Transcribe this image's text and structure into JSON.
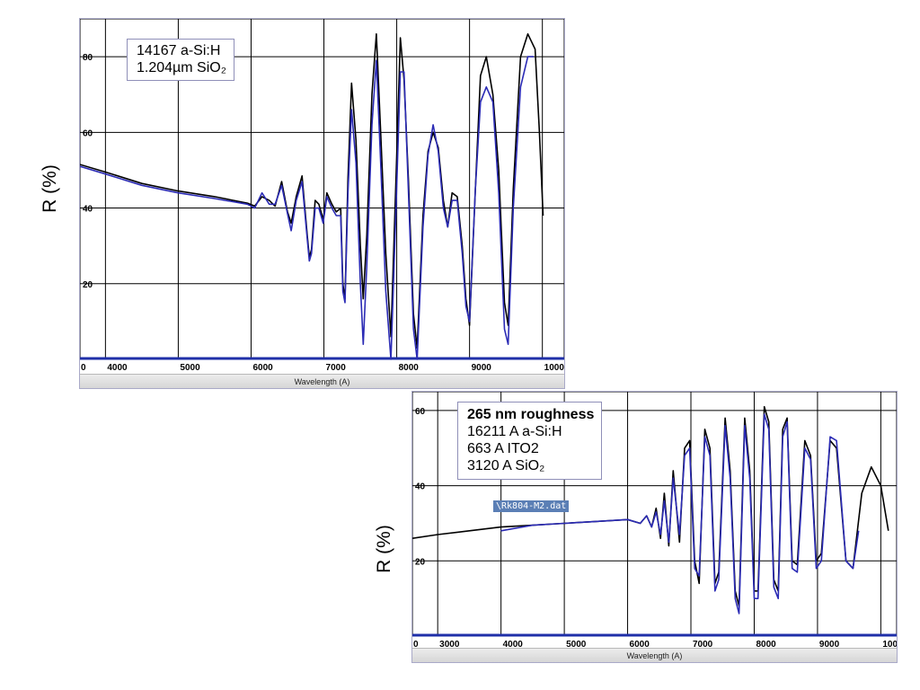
{
  "charts": [
    {
      "id": "top",
      "legend": [
        "14167 a-Si:H",
        "1.204µm  SiO₂"
      ],
      "ylabel": "R (%)",
      "xlabel": "Wavelength (A)"
    },
    {
      "id": "bottom",
      "legend_title": "265 nm roughness",
      "legend": [
        "16211 A   a-Si:H",
        "663 A ITO2",
        "3120 A  SiO₂"
      ],
      "ylabel": "R (%)",
      "xlabel": "Wavelength (A)",
      "file_tag": "\\Rk804-M2.dat"
    }
  ],
  "chart_data": [
    {
      "type": "line",
      "title": "",
      "xlabel": "Wavelength (A)",
      "ylabel": "R (%)",
      "xlim": [
        3650,
        10300
      ],
      "ylim": [
        0,
        90
      ],
      "x_ticks": [
        "0",
        "4000",
        "5000",
        "6000",
        "7000",
        "8000",
        "9000",
        "1000"
      ],
      "y_ticks": [
        "20",
        "40",
        "60",
        "80"
      ],
      "grid": true,
      "series": [
        {
          "color": "#000000",
          "points": [
            [
              3650,
              51.5
            ],
            [
              4000,
              49.5
            ],
            [
              4500,
              46.5
            ],
            [
              5000,
              44.5
            ],
            [
              5500,
              43
            ],
            [
              5950,
              41.3
            ],
            [
              6050,
              40.5
            ],
            [
              6150,
              43
            ],
            [
              6250,
              42
            ],
            [
              6330,
              40.5
            ],
            [
              6420,
              47
            ],
            [
              6500,
              39
            ],
            [
              6550,
              36
            ],
            [
              6620,
              43
            ],
            [
              6700,
              48.5
            ],
            [
              6770,
              33
            ],
            [
              6800,
              27
            ],
            [
              6830,
              29
            ],
            [
              6880,
              42
            ],
            [
              6930,
              41
            ],
            [
              6990,
              37
            ],
            [
              7040,
              44
            ],
            [
              7110,
              41
            ],
            [
              7170,
              39
            ],
            [
              7230,
              40
            ],
            [
              7260,
              20
            ],
            [
              7290,
              16
            ],
            [
              7330,
              48
            ],
            [
              7380,
              73
            ],
            [
              7440,
              58
            ],
            [
              7500,
              30
            ],
            [
              7540,
              16
            ],
            [
              7590,
              33
            ],
            [
              7660,
              70
            ],
            [
              7720,
              86
            ],
            [
              7780,
              60
            ],
            [
              7850,
              28
            ],
            [
              7920,
              6
            ],
            [
              7990,
              48
            ],
            [
              8050,
              85
            ],
            [
              8100,
              74
            ],
            [
              8160,
              48
            ],
            [
              8230,
              12
            ],
            [
              8280,
              3
            ],
            [
              8360,
              38
            ],
            [
              8430,
              55
            ],
            [
              8500,
              60
            ],
            [
              8570,
              56
            ],
            [
              8640,
              42
            ],
            [
              8700,
              35
            ],
            [
              8760,
              44
            ],
            [
              8830,
              43
            ],
            [
              8900,
              30
            ],
            [
              8950,
              16
            ],
            [
              9000,
              9
            ],
            [
              9080,
              45
            ],
            [
              9150,
              75
            ],
            [
              9230,
              80
            ],
            [
              9320,
              70
            ],
            [
              9400,
              50
            ],
            [
              9480,
              15
            ],
            [
              9530,
              9
            ],
            [
              9600,
              45
            ],
            [
              9700,
              80
            ],
            [
              9800,
              86
            ],
            [
              9900,
              82
            ],
            [
              9960,
              60
            ],
            [
              10010,
              38
            ]
          ]
        },
        {
          "color": "#2b2bb5",
          "points": [
            [
              3650,
              51
            ],
            [
              4000,
              49
            ],
            [
              4500,
              46
            ],
            [
              5000,
              44
            ],
            [
              5500,
              42.5
            ],
            [
              5950,
              41
            ],
            [
              6050,
              40
            ],
            [
              6150,
              44
            ],
            [
              6250,
              41
            ],
            [
              6330,
              41
            ],
            [
              6420,
              46
            ],
            [
              6500,
              38.5
            ],
            [
              6550,
              34
            ],
            [
              6620,
              42
            ],
            [
              6700,
              47
            ],
            [
              6770,
              32
            ],
            [
              6800,
              26
            ],
            [
              6830,
              28
            ],
            [
              6880,
              40
            ],
            [
              6930,
              40
            ],
            [
              6990,
              36
            ],
            [
              7040,
              43
            ],
            [
              7110,
              40
            ],
            [
              7170,
              38
            ],
            [
              7230,
              38
            ],
            [
              7260,
              18
            ],
            [
              7290,
              15
            ],
            [
              7330,
              44
            ],
            [
              7380,
              66
            ],
            [
              7440,
              52
            ],
            [
              7500,
              20
            ],
            [
              7540,
              4
            ],
            [
              7590,
              25
            ],
            [
              7660,
              62
            ],
            [
              7720,
              79
            ],
            [
              7780,
              52
            ],
            [
              7850,
              18
            ],
            [
              7920,
              0
            ],
            [
              7990,
              40
            ],
            [
              8050,
              76
            ],
            [
              8100,
              76
            ],
            [
              8160,
              45
            ],
            [
              8230,
              8
            ],
            [
              8280,
              0
            ],
            [
              8360,
              35
            ],
            [
              8430,
              54
            ],
            [
              8500,
              62
            ],
            [
              8570,
              55
            ],
            [
              8640,
              40
            ],
            [
              8700,
              35
            ],
            [
              8760,
              42
            ],
            [
              8830,
              42
            ],
            [
              8900,
              28
            ],
            [
              8950,
              14
            ],
            [
              9000,
              10
            ],
            [
              9080,
              45
            ],
            [
              9150,
              68
            ],
            [
              9230,
              72
            ],
            [
              9320,
              68
            ],
            [
              9400,
              44
            ],
            [
              9480,
              8
            ],
            [
              9530,
              4
            ],
            [
              9600,
              40
            ],
            [
              9700,
              72
            ],
            [
              9800,
              80
            ],
            [
              9880,
              80
            ]
          ]
        }
      ]
    },
    {
      "type": "line",
      "title": "",
      "xlabel": "Wavelength (A)",
      "ylabel": "R (%)",
      "xlim": [
        2600,
        10250
      ],
      "ylim": [
        0,
        65
      ],
      "x_ticks": [
        "0",
        "3000",
        "4000",
        "5000",
        "6000",
        "7000",
        "8000",
        "9000",
        "1000"
      ],
      "y_ticks": [
        "20",
        "40",
        "60"
      ],
      "grid": true,
      "series": [
        {
          "color": "#000000",
          "points": [
            [
              2600,
              26
            ],
            [
              3000,
              27
            ],
            [
              3500,
              28
            ],
            [
              4000,
              29
            ],
            [
              4500,
              29.5
            ],
            [
              5000,
              30
            ],
            [
              5500,
              30.5
            ],
            [
              6000,
              31
            ],
            [
              6200,
              30
            ],
            [
              6300,
              32
            ],
            [
              6380,
              29
            ],
            [
              6450,
              34
            ],
            [
              6520,
              26
            ],
            [
              6580,
              38
            ],
            [
              6650,
              24
            ],
            [
              6720,
              44
            ],
            [
              6820,
              25
            ],
            [
              6900,
              50
            ],
            [
              6980,
              52
            ],
            [
              7060,
              20
            ],
            [
              7130,
              14
            ],
            [
              7220,
              55
            ],
            [
              7300,
              50
            ],
            [
              7380,
              14
            ],
            [
              7440,
              17
            ],
            [
              7540,
              58
            ],
            [
              7620,
              44
            ],
            [
              7700,
              12
            ],
            [
              7760,
              8
            ],
            [
              7850,
              58
            ],
            [
              7930,
              44
            ],
            [
              8000,
              12
            ],
            [
              8060,
              12
            ],
            [
              8160,
              61
            ],
            [
              8230,
              57
            ],
            [
              8310,
              15
            ],
            [
              8380,
              12
            ],
            [
              8450,
              55
            ],
            [
              8520,
              58
            ],
            [
              8600,
              20
            ],
            [
              8680,
              19
            ],
            [
              8800,
              52
            ],
            [
              8890,
              48
            ],
            [
              8980,
              20
            ],
            [
              9060,
              22
            ],
            [
              9200,
              52
            ],
            [
              9300,
              50
            ],
            [
              9450,
              20
            ],
            [
              9560,
              18
            ],
            [
              9700,
              38
            ],
            [
              9850,
              45
            ],
            [
              10000,
              40
            ],
            [
              10120,
              28
            ]
          ]
        },
        {
          "color": "#2b2bb5",
          "points": [
            [
              4000,
              28
            ],
            [
              4500,
              29.5
            ],
            [
              5000,
              30
            ],
            [
              5500,
              30.5
            ],
            [
              6000,
              31
            ],
            [
              6200,
              30
            ],
            [
              6300,
              32
            ],
            [
              6380,
              29
            ],
            [
              6450,
              33
            ],
            [
              6520,
              27
            ],
            [
              6580,
              36
            ],
            [
              6650,
              25
            ],
            [
              6720,
              42
            ],
            [
              6820,
              27
            ],
            [
              6900,
              48
            ],
            [
              6980,
              50
            ],
            [
              7060,
              18
            ],
            [
              7130,
              16
            ],
            [
              7220,
              53
            ],
            [
              7300,
              48
            ],
            [
              7380,
              12
            ],
            [
              7440,
              15
            ],
            [
              7540,
              56
            ],
            [
              7620,
              42
            ],
            [
              7700,
              10
            ],
            [
              7760,
              6
            ],
            [
              7850,
              56
            ],
            [
              7930,
              42
            ],
            [
              8000,
              10
            ],
            [
              8060,
              10
            ],
            [
              8160,
              59
            ],
            [
              8230,
              55
            ],
            [
              8310,
              13
            ],
            [
              8380,
              10
            ],
            [
              8450,
              53
            ],
            [
              8520,
              57
            ],
            [
              8600,
              18
            ],
            [
              8680,
              17
            ],
            [
              8800,
              50
            ],
            [
              8890,
              47
            ],
            [
              8980,
              18
            ],
            [
              9060,
              20
            ],
            [
              9200,
              53
            ],
            [
              9300,
              52
            ],
            [
              9450,
              20
            ],
            [
              9560,
              18
            ],
            [
              9650,
              28
            ]
          ]
        }
      ]
    }
  ]
}
